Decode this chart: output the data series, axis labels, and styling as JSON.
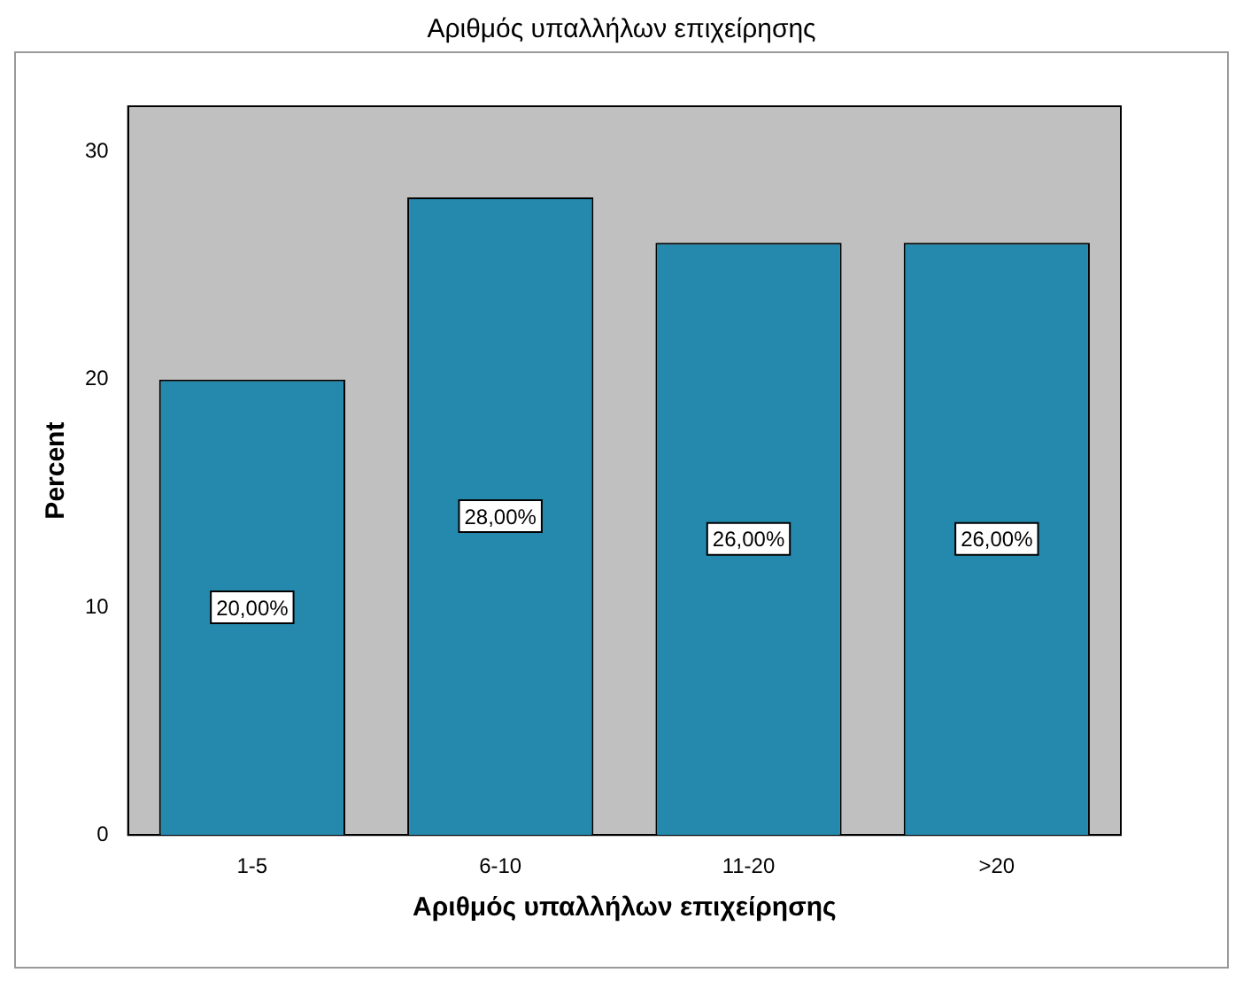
{
  "chart_data": {
    "type": "bar",
    "title": "Αριθμός υπαλλήλων επιχείρησης",
    "xlabel": "Αριθμός υπαλλήλων επιχείρησης",
    "ylabel": "Percent",
    "categories": [
      "1-5",
      "6-10",
      "11-20",
      ">20"
    ],
    "values": [
      20,
      28,
      26,
      26
    ],
    "color": "#2589ad",
    "value_labels": [
      "20,00%",
      "28,00%",
      "26,00%",
      "26,00%"
    ],
    "ylim": [
      0,
      32
    ],
    "yticks": [
      0,
      10,
      20,
      30
    ],
    "grid": false,
    "legend": false
  }
}
